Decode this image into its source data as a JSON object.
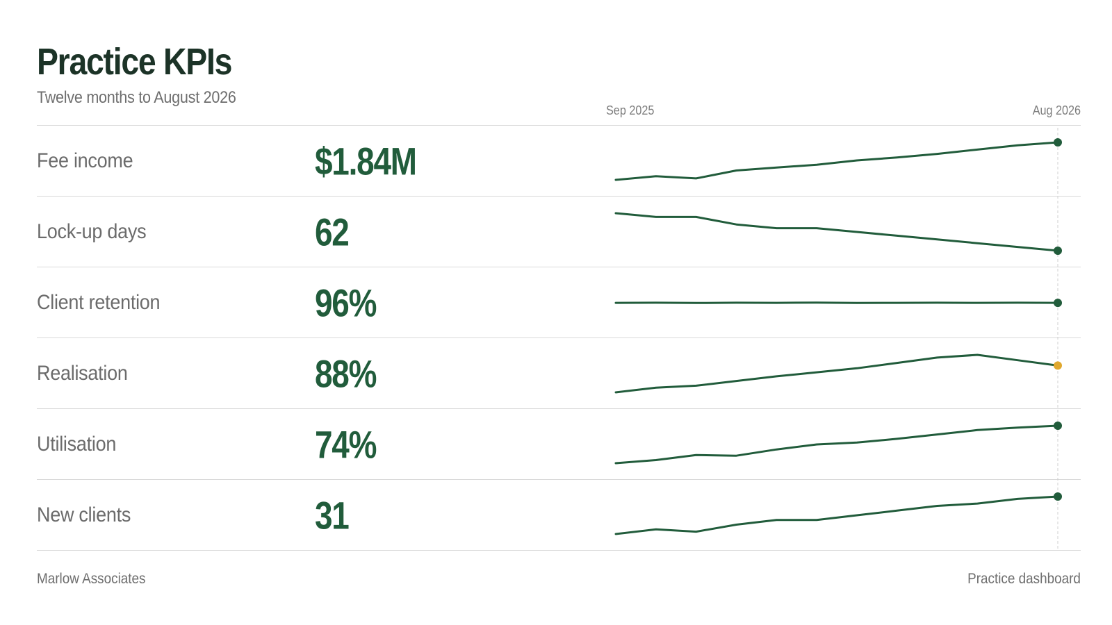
{
  "header": {
    "title": "Practice KPIs",
    "subtitle": "Twelve months to August 2026"
  },
  "axis": {
    "start_label": "Sep 2025",
    "end_label": "Aug 2026"
  },
  "footer": {
    "left": "Marlow Associates",
    "right": "Practice dashboard"
  },
  "colors": {
    "line": "#215c3b",
    "highlight": "#e0a82e",
    "marker_line": "#cfcfcf"
  },
  "rows": [
    {
      "label": "Fee income",
      "value": "$1.84M"
    },
    {
      "label": "Lock-up days",
      "value": "62"
    },
    {
      "label": "Client retention",
      "value": "96%"
    },
    {
      "label": "Realisation",
      "value": "88%"
    },
    {
      "label": "Utilisation",
      "value": "74%"
    },
    {
      "label": "New clients",
      "value": "31"
    }
  ],
  "chart_data": {
    "type": "line",
    "x": [
      "Sep 2025",
      "Oct 2025",
      "Nov 2025",
      "Dec 2025",
      "Jan 2026",
      "Feb 2026",
      "Mar 2026",
      "Apr 2026",
      "May 2026",
      "Jun 2026",
      "Jul 2026",
      "Aug 2026"
    ],
    "series": [
      {
        "name": "Fee income",
        "values": [
          1.32,
          1.37,
          1.34,
          1.45,
          1.49,
          1.53,
          1.59,
          1.63,
          1.68,
          1.74,
          1.8,
          1.84
        ],
        "end_marker": "normal"
      },
      {
        "name": "Lock-up days",
        "values": [
          72,
          71,
          71,
          69,
          68,
          68,
          67,
          66,
          65,
          64,
          63,
          62
        ],
        "end_marker": "normal"
      },
      {
        "name": "Client retention",
        "values": [
          96.0,
          96.1,
          95.9,
          96.1,
          96.0,
          96.2,
          95.9,
          96.0,
          96.1,
          96.0,
          96.1,
          96.0
        ],
        "end_marker": "normal"
      },
      {
        "name": "Realisation",
        "values": [
          84.0,
          84.7,
          85.0,
          85.7,
          86.4,
          87.0,
          87.6,
          88.4,
          89.2,
          89.6,
          88.8,
          88.0
        ],
        "end_marker": "highlight"
      },
      {
        "name": "Utilisation",
        "values": [
          68.0,
          68.5,
          69.3,
          69.2,
          70.2,
          71.0,
          71.3,
          71.9,
          72.6,
          73.3,
          73.7,
          74.0
        ],
        "end_marker": "normal"
      },
      {
        "name": "New clients",
        "values": [
          23,
          24,
          23.5,
          25,
          26,
          26,
          27,
          28,
          29,
          29.5,
          30.5,
          31
        ],
        "end_marker": "normal"
      }
    ]
  }
}
